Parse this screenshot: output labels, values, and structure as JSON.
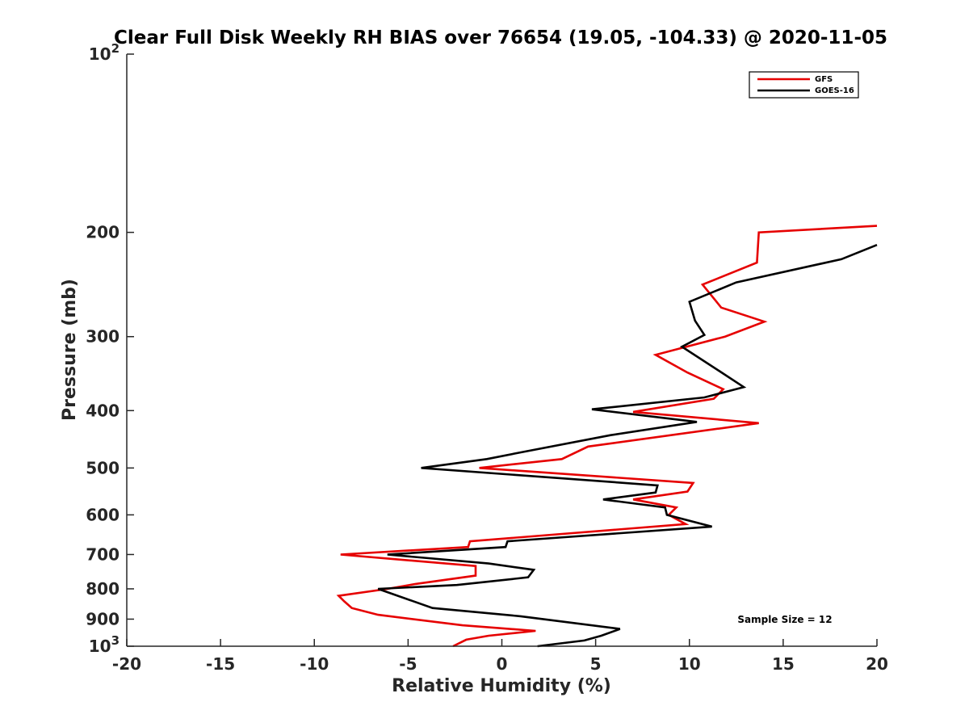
{
  "chart_data": {
    "type": "line",
    "title": "Clear Full Disk Weekly RH BIAS over 76654 (19.05, -104.33) @ 2020-11-05",
    "xlabel": "Relative Humidity (%)",
    "ylabel": "Pressure (mb)",
    "xlim": [
      -20,
      20
    ],
    "ylim": [
      100,
      1000
    ],
    "yscale": "log",
    "y_reversed": true,
    "x_ticks": [
      -20,
      -15,
      -10,
      -5,
      0,
      5,
      10,
      15,
      20
    ],
    "x_tick_labels": [
      "-20",
      "-15",
      "-10",
      "-5",
      "0",
      "5",
      "10",
      "15",
      "20"
    ],
    "y_ticks": [
      100,
      200,
      300,
      400,
      500,
      600,
      700,
      800,
      900,
      1000
    ],
    "y_tick_labels": [
      {
        "base": "10",
        "sup": "2"
      },
      {
        "base": "200",
        "sup": ""
      },
      {
        "base": "300",
        "sup": ""
      },
      {
        "base": "400",
        "sup": ""
      },
      {
        "base": "500",
        "sup": ""
      },
      {
        "base": "600",
        "sup": ""
      },
      {
        "base": "700",
        "sup": ""
      },
      {
        "base": "800",
        "sup": ""
      },
      {
        "base": "900",
        "sup": ""
      },
      {
        "base": "10",
        "sup": "3"
      }
    ],
    "grid": false,
    "legend_position": "top-right",
    "annotation": "Sample Size = 12",
    "series": [
      {
        "name": "GFS",
        "color": "#e60000",
        "points": [
          [
            20.0,
            195
          ],
          [
            13.7,
            200
          ],
          [
            13.6,
            225
          ],
          [
            10.7,
            245
          ],
          [
            11.7,
            268
          ],
          [
            14.0,
            283
          ],
          [
            11.9,
            300
          ],
          [
            8.2,
            322
          ],
          [
            9.9,
            345
          ],
          [
            11.8,
            368
          ],
          [
            11.3,
            382
          ],
          [
            7.0,
            402
          ],
          [
            13.7,
            420
          ],
          [
            4.6,
            460
          ],
          [
            3.2,
            483
          ],
          [
            -1.2,
            500
          ],
          [
            10.2,
            530
          ],
          [
            9.9,
            548
          ],
          [
            7.0,
            565
          ],
          [
            9.3,
            583
          ],
          [
            8.9,
            600
          ],
          [
            9.8,
            622
          ],
          [
            -1.7,
            665
          ],
          [
            -1.8,
            680
          ],
          [
            -8.6,
            700
          ],
          [
            -1.4,
            732
          ],
          [
            -1.4,
            760
          ],
          [
            -4.6,
            785
          ],
          [
            -6.1,
            800
          ],
          [
            -8.7,
            822
          ],
          [
            -8.4,
            840
          ],
          [
            -8.0,
            862
          ],
          [
            -6.6,
            885
          ],
          [
            -2.1,
            922
          ],
          [
            1.8,
            942
          ],
          [
            -0.7,
            960
          ],
          [
            -1.9,
            975
          ],
          [
            -2.6,
            1000
          ]
        ]
      },
      {
        "name": "GOES-16",
        "color": "#000000",
        "points": [
          [
            20.0,
            210
          ],
          [
            18.1,
            222
          ],
          [
            12.5,
            243
          ],
          [
            10.0,
            262
          ],
          [
            10.3,
            282
          ],
          [
            10.8,
            298
          ],
          [
            9.6,
            312
          ],
          [
            11.6,
            343
          ],
          [
            12.9,
            365
          ],
          [
            10.8,
            380
          ],
          [
            4.8,
            398
          ],
          [
            10.4,
            418
          ],
          [
            5.8,
            440
          ],
          [
            1.1,
            470
          ],
          [
            -0.8,
            483
          ],
          [
            -4.3,
            500
          ],
          [
            8.3,
            535
          ],
          [
            8.2,
            550
          ],
          [
            5.4,
            565
          ],
          [
            8.7,
            583
          ],
          [
            8.8,
            600
          ],
          [
            11.2,
            628
          ],
          [
            0.3,
            665
          ],
          [
            0.2,
            680
          ],
          [
            -6.1,
            700
          ],
          [
            -0.7,
            725
          ],
          [
            1.7,
            743
          ],
          [
            1.4,
            765
          ],
          [
            -2.4,
            788
          ],
          [
            -6.6,
            800
          ],
          [
            -4.8,
            838
          ],
          [
            -3.7,
            862
          ],
          [
            1.0,
            890
          ],
          [
            6.3,
            935
          ],
          [
            5.3,
            960
          ],
          [
            4.4,
            978
          ],
          [
            1.9,
            1000
          ]
        ]
      }
    ]
  }
}
